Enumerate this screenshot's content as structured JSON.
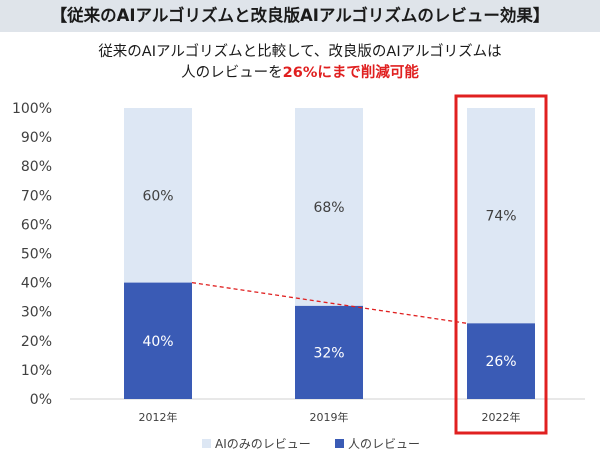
{
  "header": {
    "title": "【従来のAIアルゴリズムと改良版AIアルゴリズムのレビュー効果】",
    "subtitle_line1": "従来のAIアルゴリズムと比較して、改良版のAIアルゴリズムは",
    "subtitle_line2_prefix": "人のレビューを",
    "subtitle_line2_highlight": "26%にまで削減可能"
  },
  "chart_data": {
    "type": "bar",
    "stacked": true,
    "categories": [
      "2012年",
      "2019年",
      "2022年"
    ],
    "series": [
      {
        "name": "人のレビュー",
        "values": [
          40,
          32,
          26
        ],
        "labels": [
          "40%",
          "32%",
          "26%"
        ],
        "color": "#3a5bb5"
      },
      {
        "name": "AIのみのレビュー",
        "values": [
          60,
          68,
          74
        ],
        "labels": [
          "60%",
          "68%",
          "74%"
        ],
        "color": "#dde7f4"
      }
    ],
    "yticks": [
      "0%",
      "10%",
      "20%",
      "30%",
      "40%",
      "50%",
      "60%",
      "70%",
      "80%",
      "90%",
      "100%"
    ],
    "ylim": [
      0,
      100
    ],
    "grid": false,
    "legend_position": "bottom",
    "highlight_category": "2022年",
    "highlight_color": "#e02020",
    "trend_line_color": "#e02020"
  }
}
